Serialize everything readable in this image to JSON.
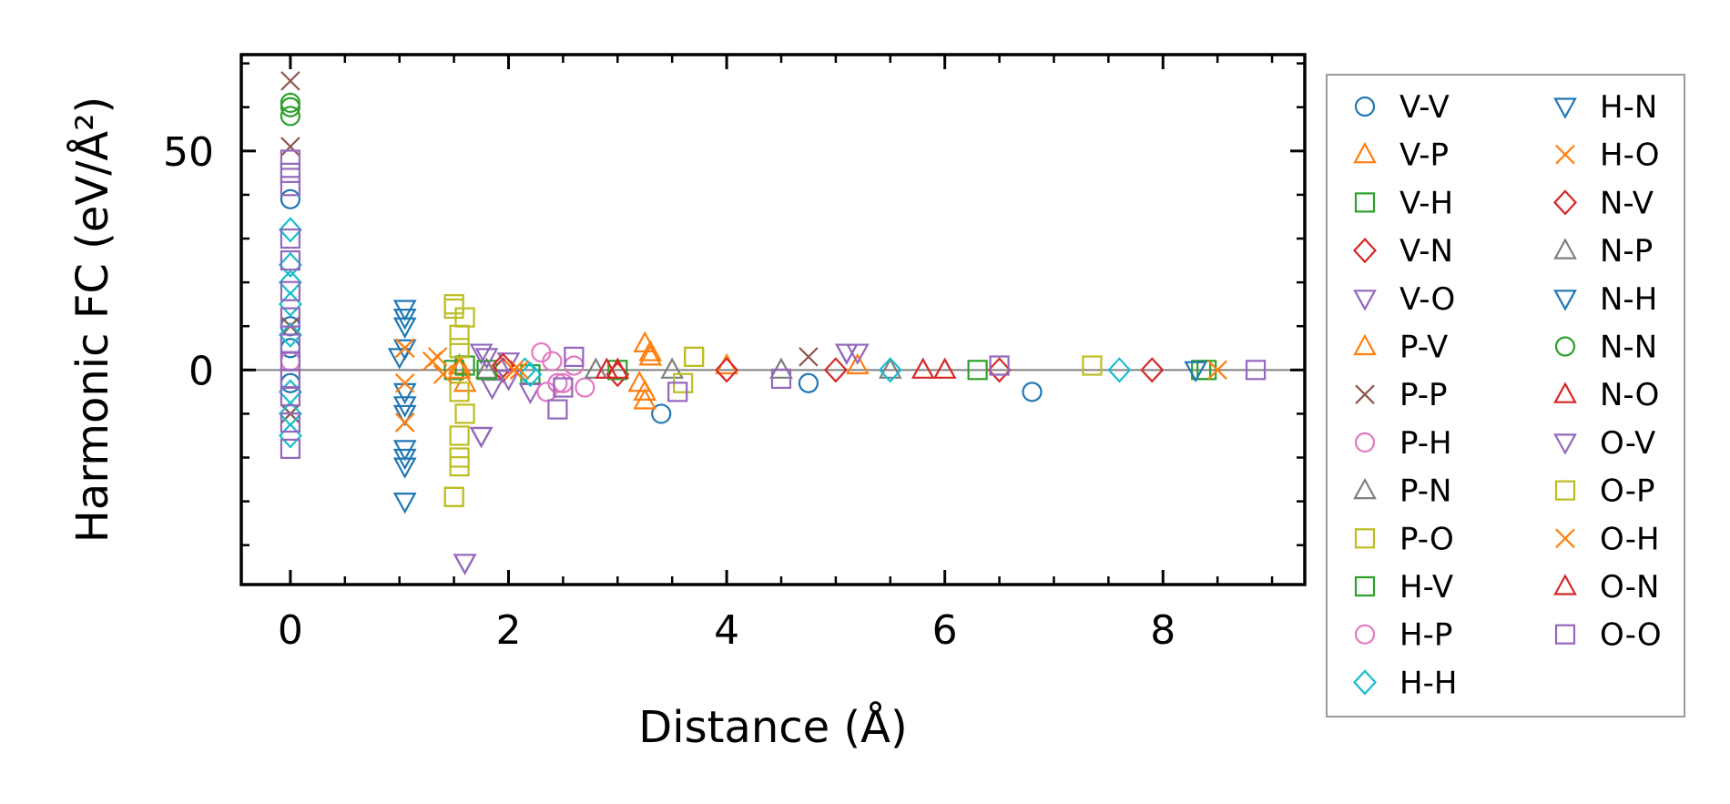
{
  "chart_data": {
    "type": "scatter",
    "title": "",
    "xlabel": "Distance (Å)",
    "ylabel": "Harmonic FC (eV/Å²)",
    "xlim": [
      -0.45,
      9.3
    ],
    "ylim": [
      -49,
      72
    ],
    "xticks": [
      0,
      2,
      4,
      6,
      8
    ],
    "xtick_labels": [
      "0",
      "2",
      "4",
      "6",
      "8"
    ],
    "yticks": [
      0,
      50
    ],
    "ytick_labels": [
      "0",
      "50"
    ],
    "zero_line": 0,
    "legend_position": "right",
    "series": [
      {
        "name": "V-V",
        "marker": "circle",
        "color": "#1f77b4",
        "points": [
          [
            0,
            39
          ],
          [
            0,
            5
          ],
          [
            0,
            -3
          ],
          [
            0,
            10
          ],
          [
            3.4,
            -10
          ],
          [
            6.8,
            -5
          ],
          [
            4.75,
            -3
          ]
        ]
      },
      {
        "name": "V-P",
        "marker": "triangle-up",
        "color": "#ff7f0e",
        "points": [
          [
            1.55,
            1
          ],
          [
            1.6,
            -3
          ],
          [
            3.25,
            6
          ],
          [
            3.25,
            -7
          ],
          [
            3.3,
            3
          ],
          [
            3.25,
            -5
          ],
          [
            5.2,
            1
          ]
        ]
      },
      {
        "name": "V-H",
        "marker": "square",
        "color": "#2ca02c",
        "points": [
          [
            1.5,
            0
          ],
          [
            1.6,
            1
          ],
          [
            2.2,
            -1
          ],
          [
            6.3,
            0
          ],
          [
            8.35,
            0
          ]
        ]
      },
      {
        "name": "V-N",
        "marker": "diamond",
        "color": "#d62728",
        "points": [
          [
            1.95,
            0
          ],
          [
            3.0,
            -1
          ],
          [
            5.0,
            0
          ],
          [
            7.9,
            0
          ]
        ]
      },
      {
        "name": "V-O",
        "marker": "triangle-down",
        "color": "#9467bd",
        "points": [
          [
            1.6,
            -44
          ],
          [
            1.75,
            -15
          ],
          [
            1.75,
            4
          ],
          [
            1.85,
            -4
          ],
          [
            2.0,
            2
          ],
          [
            5.1,
            4
          ],
          [
            5.2,
            4
          ],
          [
            2.2,
            -5
          ]
        ]
      },
      {
        "name": "P-V",
        "marker": "triangle-up",
        "color": "#ff7f0e",
        "points": [
          [
            1.55,
            0
          ],
          [
            3.2,
            -3
          ],
          [
            3.3,
            4
          ],
          [
            4.0,
            1
          ]
        ]
      },
      {
        "name": "P-P",
        "marker": "x",
        "color": "#8c564b",
        "points": [
          [
            0,
            66
          ],
          [
            0,
            51
          ],
          [
            0,
            10
          ],
          [
            0,
            -10
          ],
          [
            4.75,
            3
          ]
        ]
      },
      {
        "name": "P-H",
        "marker": "circle",
        "color": "#e377c2",
        "points": [
          [
            0,
            2
          ],
          [
            2.3,
            4
          ],
          [
            2.35,
            -5
          ],
          [
            2.5,
            -3
          ],
          [
            2.7,
            -4
          ]
        ]
      },
      {
        "name": "P-N",
        "marker": "triangle-up",
        "color": "#7f7f7f",
        "points": [
          [
            1.8,
            0
          ],
          [
            3.5,
            0
          ],
          [
            5.5,
            0
          ]
        ]
      },
      {
        "name": "P-O",
        "marker": "square",
        "color": "#bcbd22",
        "points": [
          [
            1.5,
            -29
          ],
          [
            1.55,
            -22
          ],
          [
            1.55,
            -15
          ],
          [
            1.5,
            15
          ],
          [
            1.6,
            12
          ],
          [
            1.55,
            -5
          ],
          [
            1.6,
            -10
          ],
          [
            1.55,
            5
          ],
          [
            3.7,
            3
          ],
          [
            3.6,
            -3
          ],
          [
            7.35,
            1
          ]
        ]
      },
      {
        "name": "H-V",
        "marker": "square",
        "color": "#2ca02c",
        "points": [
          [
            1.8,
            0
          ],
          [
            3.0,
            0
          ],
          [
            8.4,
            0
          ]
        ]
      },
      {
        "name": "H-P",
        "marker": "circle",
        "color": "#e377c2",
        "points": [
          [
            2.4,
            2
          ],
          [
            2.45,
            -3
          ],
          [
            2.6,
            1
          ]
        ]
      },
      {
        "name": "H-H",
        "marker": "diamond",
        "color": "#17becf",
        "points": [
          [
            0,
            32
          ],
          [
            0,
            24
          ],
          [
            0,
            20
          ],
          [
            0,
            15
          ],
          [
            0,
            8
          ],
          [
            0,
            -5
          ],
          [
            0,
            -10
          ],
          [
            0,
            -15
          ],
          [
            2.15,
            0
          ],
          [
            2.2,
            -1
          ],
          [
            5.5,
            0
          ],
          [
            7.6,
            0
          ]
        ]
      },
      {
        "name": "H-N",
        "marker": "triangle-down",
        "color": "#1f77b4",
        "points": [
          [
            1.05,
            -30
          ],
          [
            1.05,
            -22
          ],
          [
            1.05,
            -18
          ],
          [
            1.05,
            -10
          ],
          [
            1.05,
            14
          ],
          [
            1.05,
            10
          ],
          [
            1.05,
            5
          ],
          [
            1.05,
            -5
          ],
          [
            8.3,
            0
          ]
        ]
      },
      {
        "name": "H-O",
        "marker": "x",
        "color": "#ff7f0e",
        "points": [
          [
            1.05,
            5
          ],
          [
            1.05,
            -3
          ],
          [
            1.05,
            -12
          ],
          [
            1.3,
            2
          ],
          [
            1.4,
            -1
          ],
          [
            2.1,
            0
          ],
          [
            8.5,
            0
          ]
        ]
      },
      {
        "name": "N-V",
        "marker": "diamond",
        "color": "#d62728",
        "points": [
          [
            1.95,
            1
          ],
          [
            4.0,
            0
          ],
          [
            6.5,
            0
          ]
        ]
      },
      {
        "name": "N-P",
        "marker": "triangle-up",
        "color": "#7f7f7f",
        "points": [
          [
            2.8,
            0
          ],
          [
            4.5,
            0
          ]
        ]
      },
      {
        "name": "N-H",
        "marker": "triangle-down",
        "color": "#1f77b4",
        "points": [
          [
            1.05,
            12
          ],
          [
            1.05,
            -8
          ],
          [
            1.05,
            -20
          ],
          [
            1.0,
            3
          ]
        ]
      },
      {
        "name": "N-N",
        "marker": "circle",
        "color": "#2ca02c",
        "points": [
          [
            0,
            61
          ],
          [
            0,
            58
          ],
          [
            0,
            60
          ]
        ]
      },
      {
        "name": "N-O",
        "marker": "triangle-up",
        "color": "#d62728",
        "points": [
          [
            3.0,
            0
          ],
          [
            6.0,
            0
          ]
        ]
      },
      {
        "name": "O-V",
        "marker": "triangle-down",
        "color": "#9467bd",
        "points": [
          [
            1.6,
            -44
          ],
          [
            1.75,
            -15
          ],
          [
            1.8,
            3
          ],
          [
            2.0,
            -2
          ],
          [
            5.1,
            4
          ]
        ]
      },
      {
        "name": "O-P",
        "marker": "square",
        "color": "#bcbd22",
        "points": [
          [
            1.5,
            -29
          ],
          [
            1.55,
            -20
          ],
          [
            1.5,
            14
          ],
          [
            1.55,
            8
          ],
          [
            3.7,
            3
          ]
        ]
      },
      {
        "name": "O-H",
        "marker": "x",
        "color": "#ff7f0e",
        "points": [
          [
            1.05,
            5
          ],
          [
            1.05,
            -12
          ],
          [
            1.35,
            3
          ],
          [
            2.05,
            0
          ]
        ]
      },
      {
        "name": "O-N",
        "marker": "triangle-up",
        "color": "#d62728",
        "points": [
          [
            2.9,
            0
          ],
          [
            5.8,
            0
          ]
        ]
      },
      {
        "name": "O-O",
        "marker": "square",
        "color": "#9467bd",
        "points": [
          [
            0,
            48
          ],
          [
            0,
            45
          ],
          [
            0,
            42
          ],
          [
            0,
            30
          ],
          [
            0,
            25
          ],
          [
            0,
            18
          ],
          [
            0,
            12
          ],
          [
            0,
            6
          ],
          [
            0,
            2
          ],
          [
            0,
            -2
          ],
          [
            0,
            -6
          ],
          [
            0,
            -12
          ],
          [
            0,
            -18
          ],
          [
            2.45,
            -9
          ],
          [
            2.6,
            3
          ],
          [
            2.5,
            -4
          ],
          [
            3.55,
            -5
          ],
          [
            4.5,
            -2
          ],
          [
            6.5,
            1
          ],
          [
            8.85,
            0
          ]
        ]
      }
    ]
  }
}
